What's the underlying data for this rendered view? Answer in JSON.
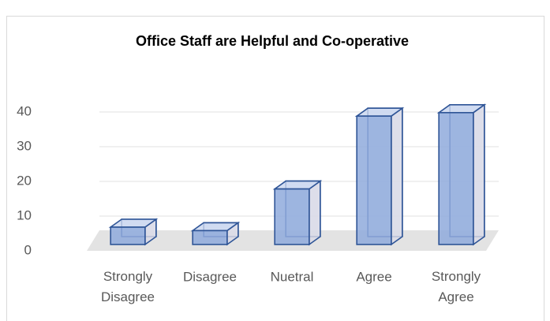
{
  "chart_data": {
    "type": "bar3d",
    "title": "Office Staff are Helpful and Co-operative",
    "categories": [
      "Strongly Disagree",
      "Disagree",
      "Nuetral",
      "Agree",
      "Strongly Agree"
    ],
    "values": [
      5,
      4,
      16,
      37,
      38
    ],
    "color": "#8faadc",
    "ylim": [
      0,
      40
    ],
    "yticks": [
      0,
      10,
      20,
      30,
      40
    ],
    "grid": true
  }
}
